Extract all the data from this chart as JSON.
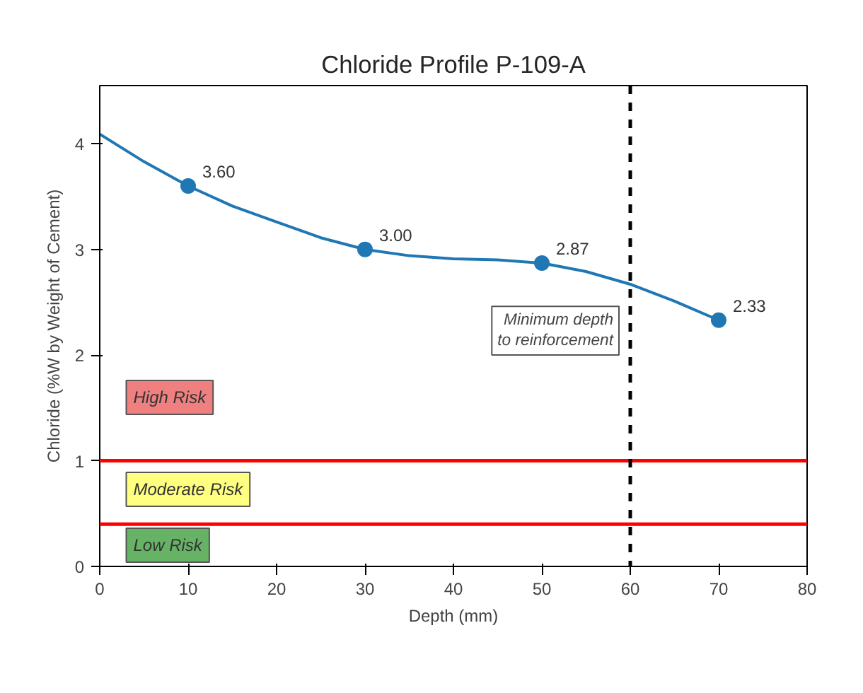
{
  "chart_data": {
    "type": "line",
    "title": "Chloride Profile P-109-A",
    "xlabel": "Depth (mm)",
    "ylabel": "Chloride (%W by Weight of Cement)",
    "xlim": [
      0,
      80
    ],
    "xticks": [
      0,
      10,
      20,
      30,
      40,
      50,
      60,
      70,
      80
    ],
    "ylim": [
      0,
      4.55
    ],
    "yticks": [
      0,
      1,
      2,
      3,
      4
    ],
    "grid": false,
    "series": [
      {
        "color": "#1f77b4",
        "x": [
          0,
          5,
          10,
          15,
          20,
          25,
          30,
          35,
          40,
          45,
          50,
          55,
          60,
          65,
          70
        ],
        "values": [
          4.09,
          3.83,
          3.6,
          3.41,
          3.26,
          3.11,
          3.0,
          2.94,
          2.91,
          2.9,
          2.87,
          2.79,
          2.67,
          2.51,
          2.33
        ],
        "marker": "none"
      },
      {
        "type": "scatter",
        "color": "#1f77b4",
        "x": [
          10,
          30,
          50,
          70
        ],
        "values": [
          3.6,
          3.0,
          2.87,
          2.33
        ],
        "marker": "circle",
        "value_labels": [
          "3.60",
          "3.00",
          "2.87",
          "2.33"
        ]
      }
    ],
    "ref_lines": [
      {
        "axis": "y",
        "value": 1,
        "color": "#ff0000",
        "line_style": "solid"
      },
      {
        "axis": "y",
        "value": 0.4,
        "color": "#ff0000",
        "line_style": "solid"
      },
      {
        "axis": "x",
        "value": 60,
        "color": "#000000",
        "line_style": "dashed",
        "label": "Minimum depth\nto reinforcement"
      }
    ],
    "annotations": [
      "High Risk",
      "Moderate Risk",
      "Low Risk"
    ]
  }
}
